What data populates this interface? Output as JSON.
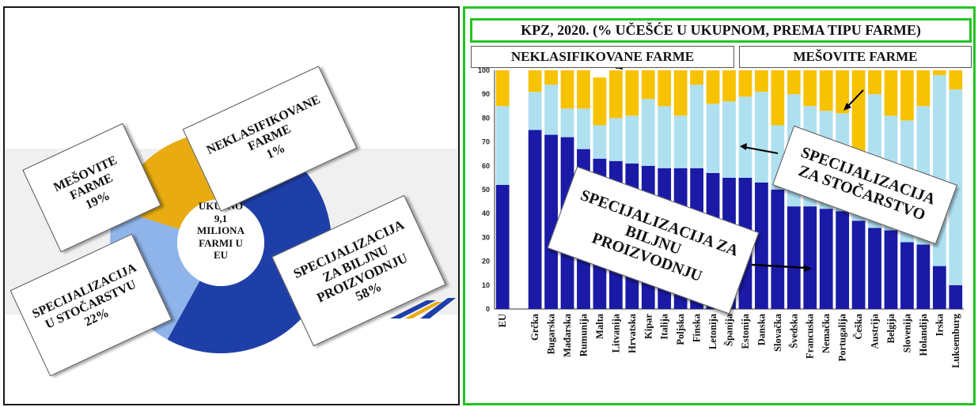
{
  "left": {
    "center_label": "UKUPNO\n9,1\nMILIONA\nFARMI U\nEU",
    "callouts": {
      "mixed": "MEŠOVITE\nFARME\n19%",
      "unclassified": "NEKLASIFIKOVANE\nFARME\n1%",
      "livestock": "SPECIJALIZACIJA\nU STOČARSTVU\n22%",
      "crops": "SPECIJALIZACIJA\nZA BILJNU\nPROIZVODNJU\n58%"
    },
    "donut": [
      {
        "name": "crops",
        "value": 58,
        "color": "#1f3fa8"
      },
      {
        "name": "livestock",
        "value": 22,
        "color": "#8fb4ea"
      },
      {
        "name": "mixed",
        "value": 19,
        "color": "#e8ac12"
      },
      {
        "name": "unclassified",
        "value": 1,
        "color": "#d9d9d9"
      }
    ]
  },
  "right": {
    "title": "KPZ, 2020. (% UČEŠĆE U UKUPNOM, PREMA TIPU FARME)",
    "header_unclassified": "NEKLASIFIKOVANE FARME",
    "header_mixed": "MEŠOVITE FARME",
    "annotation_livestock": "SPECIJALIZACIJA\nZA STOČARSTVO",
    "annotation_crops": "SPECIJALIZACIJA ZA\nBILJNU\nPROIZVODNJU"
  },
  "chart_data": {
    "type": "bar",
    "stacked": true,
    "ylim": [
      0,
      100
    ],
    "yticks": [
      0,
      10,
      20,
      30,
      40,
      50,
      60,
      70,
      80,
      90,
      100
    ],
    "grid": false,
    "categories": [
      "EU",
      "Grčka",
      "Bugarska",
      "Mađarska",
      "Rumunija",
      "Malta",
      "Litvanija",
      "Hrvatska",
      "Kipar",
      "Italija",
      "Poljska",
      "Finska",
      "Letonija",
      "Španija",
      "Estonija",
      "Danska",
      "Slovačka",
      "Švedska",
      "Francuska",
      "Nemačka",
      "Portugalija",
      "Češka",
      "Austrija",
      "Belgija",
      "Slovenija",
      "Holandija",
      "Irska",
      "Luksemburg"
    ],
    "series": [
      {
        "values": [
          52,
          75,
          73,
          72,
          67,
          63,
          62,
          61,
          60,
          59,
          59,
          59,
          57,
          55,
          55,
          53,
          50,
          43,
          43,
          42,
          41,
          37,
          34,
          33,
          28,
          27,
          18,
          10
        ],
        "color": "#1a1aa6"
      },
      {
        "values": [
          33,
          16,
          21,
          12,
          17,
          14,
          18,
          20,
          28,
          26,
          22,
          35,
          29,
          32,
          34,
          38,
          27,
          47,
          42,
          41,
          41,
          26,
          56,
          48,
          51,
          58,
          80,
          82
        ],
        "color": "#aee0f0"
      },
      {
        "values": [
          15,
          9,
          6,
          16,
          16,
          20,
          20,
          19,
          12,
          15,
          19,
          6,
          14,
          13,
          11,
          9,
          23,
          10,
          15,
          17,
          18,
          37,
          10,
          19,
          21,
          15,
          2,
          8
        ],
        "color": "#f7c200"
      }
    ]
  }
}
